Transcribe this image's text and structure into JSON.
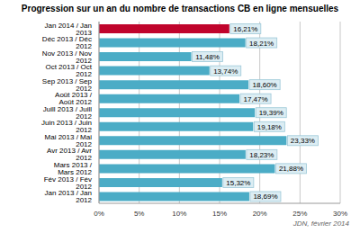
{
  "chart_data": {
    "type": "bar",
    "title": "Progression sur un an du nombre de transactions CB en ligne mensuelles",
    "orientation": "horizontal",
    "categories": [
      "Jan 2014 / Jan 2013",
      "Déc 2013 / Déc 2012",
      "Nov 2013 / Nov 2012",
      "Oct 2013 / Oct 2012",
      "Sep 2013 / Sep 2012",
      "Août 2013 / Août 2012",
      "Juill 2013 / Juill 2012",
      "Juin 2013 / Juin 2012",
      "Mai 2013 / Mai 2012",
      "Avr 2013 / Avr 2012",
      "Mars 2013 / Mars 2012",
      "Fév 2013 / Fév 2012",
      "Jan 2013 / Jan 2012"
    ],
    "values": [
      16.21,
      18.21,
      11.48,
      13.74,
      18.6,
      17.47,
      19.39,
      19.18,
      23.33,
      18.23,
      21.88,
      15.32,
      18.69
    ],
    "value_labels": [
      "16,21%",
      "18,21%",
      "11,48%",
      "13,74%",
      "18,60%",
      "17,47%",
      "19,39%",
      "19,18%",
      "23,33%",
      "18,23%",
      "21,88%",
      "15,32%",
      "18,69%"
    ],
    "colors": [
      "#c0042c",
      "#4bacc6",
      "#4bacc6",
      "#4bacc6",
      "#4bacc6",
      "#4bacc6",
      "#4bacc6",
      "#4bacc6",
      "#4bacc6",
      "#4bacc6",
      "#4bacc6",
      "#4bacc6",
      "#4bacc6"
    ],
    "xlim": [
      0,
      30
    ],
    "xticks": [
      {
        "value": 0,
        "label": "0%"
      },
      {
        "value": 5,
        "label": "5%"
      },
      {
        "value": 10,
        "label": "10%"
      },
      {
        "value": 15,
        "label": "15%"
      },
      {
        "value": 20,
        "label": "20%"
      },
      {
        "value": 25,
        "label": "25%"
      },
      {
        "value": 30,
        "label": "30%"
      }
    ],
    "grid": true,
    "data_labels": true,
    "annotations": [
      "JDN, février 2014"
    ]
  }
}
